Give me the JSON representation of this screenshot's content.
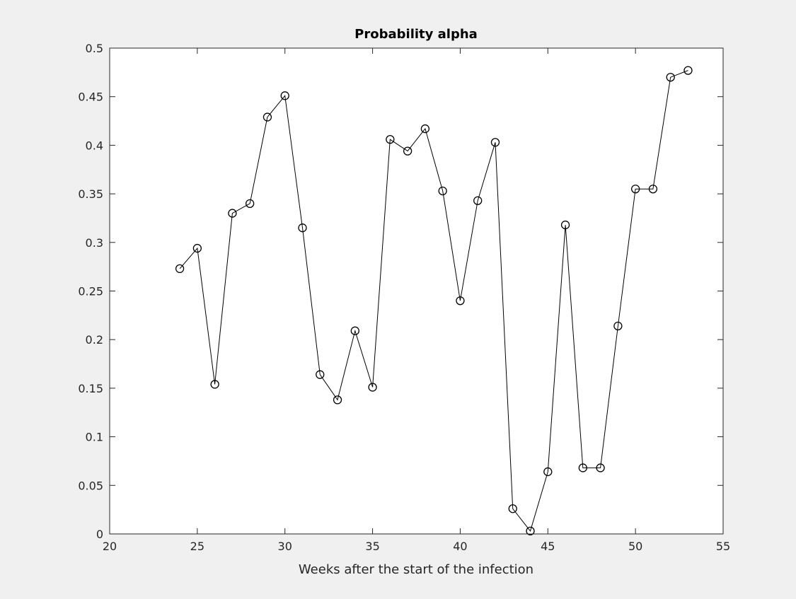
{
  "chart_data": {
    "type": "line",
    "title": "Probability alpha",
    "xlabel": "Weeks after the start of the infection",
    "ylabel": "",
    "xlim": [
      20,
      55
    ],
    "ylim": [
      0,
      0.5
    ],
    "xticks": [
      20,
      25,
      30,
      35,
      40,
      45,
      50,
      55
    ],
    "yticks": [
      0,
      0.05,
      0.1,
      0.15,
      0.2,
      0.25,
      0.3,
      0.35,
      0.4,
      0.45,
      0.5
    ],
    "xtick_labels": [
      "20",
      "25",
      "30",
      "35",
      "40",
      "45",
      "50",
      "55"
    ],
    "ytick_labels": [
      "0",
      "0.05",
      "0.1",
      "0.15",
      "0.2",
      "0.25",
      "0.3",
      "0.35",
      "0.4",
      "0.45",
      "0.5"
    ],
    "grid": false,
    "series": [
      {
        "marker": "circle",
        "color": "#000000",
        "x": [
          24,
          25,
          26,
          27,
          28,
          29,
          30,
          31,
          32,
          33,
          34,
          35,
          36,
          37,
          38,
          39,
          40,
          41,
          42,
          43,
          44,
          45,
          46,
          47,
          48,
          49,
          50,
          51,
          52,
          53
        ],
        "y": [
          0.273,
          0.294,
          0.154,
          0.33,
          0.34,
          0.429,
          0.451,
          0.315,
          0.164,
          0.138,
          0.209,
          0.151,
          0.406,
          0.394,
          0.417,
          0.353,
          0.24,
          0.343,
          0.403,
          0.026,
          0.003,
          0.064,
          0.318,
          0.068,
          0.068,
          0.214,
          0.355,
          0.355,
          0.47,
          0.477
        ]
      }
    ]
  },
  "colors": {
    "figure_background": "#f0f0f0",
    "axes_background": "#ffffff",
    "axis_color": "#262626",
    "line_color": "#000000"
  }
}
